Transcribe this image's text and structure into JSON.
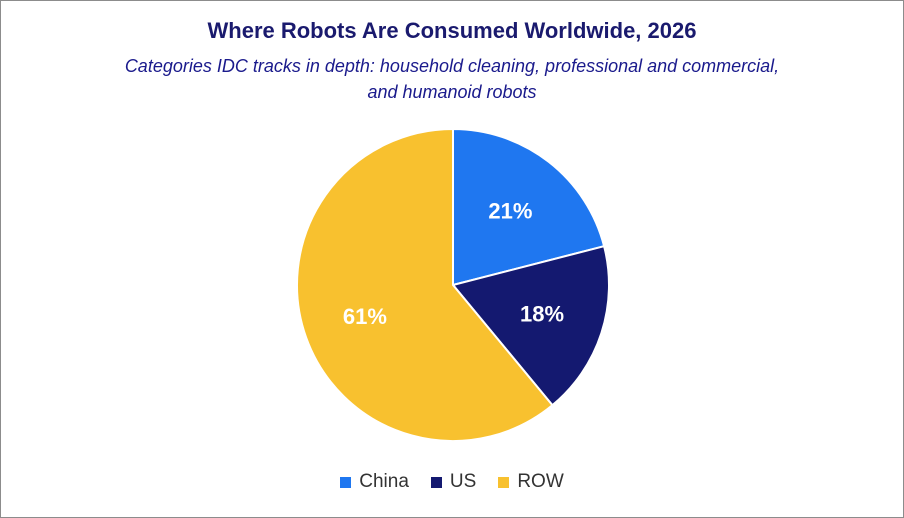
{
  "chart_data": {
    "type": "pie",
    "title": "Where Robots Are Consumed Worldwide, 2026",
    "subtitle": "Categories IDC tracks in depth: household cleaning, professional and commercial, and humanoid robots",
    "slices": [
      {
        "name": "China",
        "value": 21,
        "label": "21%",
        "color": "#1f77f0"
      },
      {
        "name": "US",
        "value": 18,
        "label": "18%",
        "color": "#141970"
      },
      {
        "name": "ROW",
        "value": 61,
        "label": "61%",
        "color": "#f8c12f"
      }
    ],
    "legend_position": "bottom"
  }
}
